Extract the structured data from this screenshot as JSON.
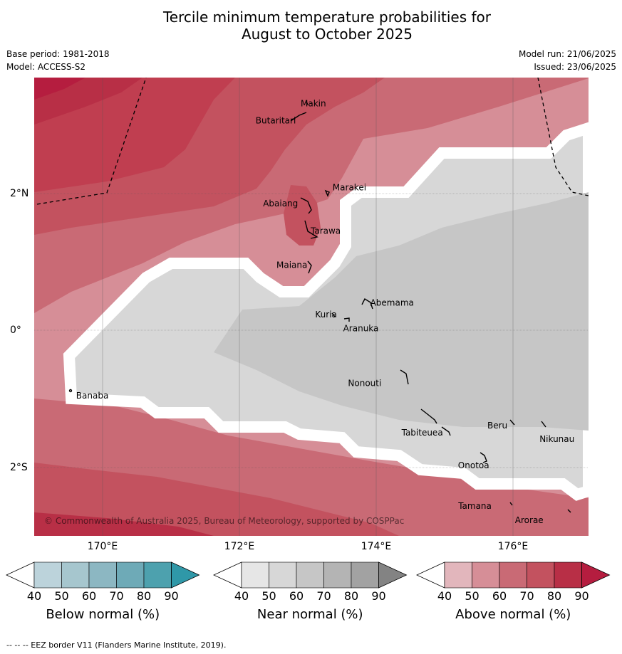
{
  "title_line1": "Tercile minimum temperature probabilities for",
  "title_line2": "August to October 2025",
  "meta": {
    "base_period": "Base period: 1981-2018",
    "model": "Model: ACCESS-S2",
    "model_run": "Model run: 21/06/2025",
    "issued": "Issued: 23/06/2025"
  },
  "copyright": "© Commonwealth of Australia 2025, Bureau of Meteorology, supported by COSPPac",
  "lon_labels": [
    "170°E",
    "172°E",
    "174°E",
    "176°E"
  ],
  "lat_labels": [
    "2°N",
    "0°",
    "2°S"
  ],
  "islands": [
    {
      "name": "Makin",
      "lon": 173.0,
      "lat": 3.35
    },
    {
      "name": "Butaritari",
      "lon": 172.8,
      "lat": 3.1
    },
    {
      "name": "Marakei",
      "lon": 173.3,
      "lat": 2.0
    },
    {
      "name": "Abaiang",
      "lon": 172.95,
      "lat": 1.85
    },
    {
      "name": "Tarawa",
      "lon": 173.0,
      "lat": 1.45
    },
    {
      "name": "Maiana",
      "lon": 173.0,
      "lat": 0.95
    },
    {
      "name": "Abemama",
      "lon": 173.85,
      "lat": 0.4
    },
    {
      "name": "Kuria",
      "lon": 173.4,
      "lat": 0.23
    },
    {
      "name": "Aranuka",
      "lon": 173.6,
      "lat": 0.15
    },
    {
      "name": "Banaba",
      "lon": 169.55,
      "lat": -0.85
    },
    {
      "name": "Nonouti",
      "lon": 174.4,
      "lat": -0.65
    },
    {
      "name": "Tabiteuea",
      "lon": 174.85,
      "lat": -1.35
    },
    {
      "name": "Beru",
      "lon": 176.0,
      "lat": -1.35
    },
    {
      "name": "Nikunau",
      "lon": 176.45,
      "lat": -1.4
    },
    {
      "name": "Onotoa",
      "lon": 175.55,
      "lat": -1.85
    },
    {
      "name": "Tamana",
      "lon": 175.95,
      "lat": -2.5
    },
    {
      "name": "Arorae",
      "lon": 176.8,
      "lat": -2.65
    }
  ],
  "colorbars": [
    {
      "title": "Below normal (%)",
      "ticks": [
        "40",
        "50",
        "60",
        "70",
        "80",
        "90"
      ],
      "colors": [
        "#bcd3db",
        "#a6c6ce",
        "#8cb7c2",
        "#6eaab7",
        "#4da1ae",
        "#2f98a8"
      ]
    },
    {
      "title": "Near normal (%)",
      "ticks": [
        "40",
        "50",
        "60",
        "70",
        "80",
        "90"
      ],
      "colors": [
        "#e6e6e6",
        "#d7d7d7",
        "#c6c6c6",
        "#b4b4b4",
        "#a2a2a2",
        "#838383"
      ]
    },
    {
      "title": "Above normal (%)",
      "ticks": [
        "40",
        "50",
        "60",
        "70",
        "80",
        "90"
      ],
      "colors": [
        "#e2b6bc",
        "#d68e97",
        "#c96a75",
        "#c3525f",
        "#b82f46",
        "#b51d3f"
      ]
    }
  ],
  "footnote": "-- -- -- EEZ border V11 (Flanders Marine Institute, 2019)."
}
